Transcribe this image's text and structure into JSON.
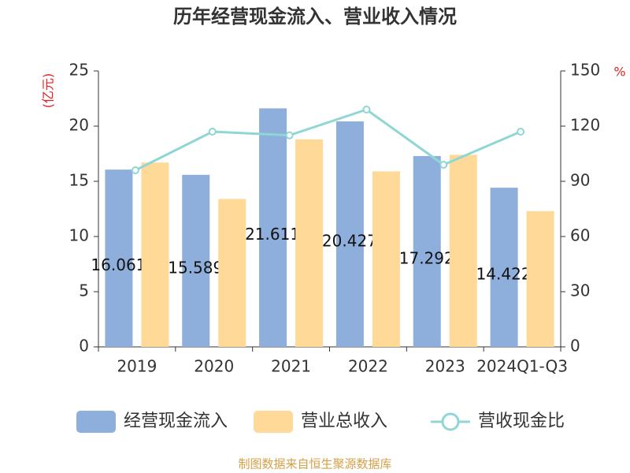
{
  "chart_data": {
    "type": "bar-line",
    "title": "历年经营现金流入、营业收入情况",
    "y_label": "(亿元)",
    "y2_label": "%",
    "categories": [
      "2019",
      "2020",
      "2021",
      "2022",
      "2023",
      "2024Q1-Q3"
    ],
    "series": [
      {
        "name": "经营现金流入",
        "type": "bar",
        "color": "#8eaedc",
        "values": [
          16.061,
          15.589,
          21.611,
          20.427,
          17.292,
          14.422
        ]
      },
      {
        "name": "营业总收入",
        "type": "bar",
        "color": "#fed998",
        "values": [
          16.7,
          13.4,
          18.8,
          15.9,
          17.4,
          12.3
        ]
      },
      {
        "name": "营收现金比",
        "type": "line",
        "color": "#8fd6d4",
        "axis": "y2",
        "values": [
          96,
          117,
          115,
          129,
          99,
          117
        ]
      }
    ],
    "ylim": [
      0,
      25
    ],
    "yticks": [
      0,
      5,
      10,
      15,
      20,
      25
    ],
    "y2lim": [
      0,
      150
    ],
    "y2ticks": [
      0,
      30,
      60,
      90,
      120,
      150
    ],
    "source": "制图数据来自恒生聚源数据库"
  }
}
